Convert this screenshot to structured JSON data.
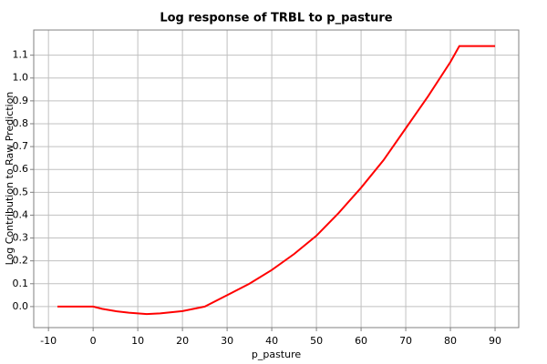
{
  "chart_data": {
    "type": "line",
    "title": "Log response of TRBL to p_pasture",
    "x_label": "p_pasture",
    "y_label": "Log Contribution to Raw Prediction",
    "x": [
      -8,
      0,
      2,
      5,
      8,
      12,
      15,
      20,
      25,
      30,
      35,
      40,
      45,
      50,
      55,
      60,
      65,
      70,
      75,
      80,
      82,
      90
    ],
    "series": [
      {
        "name": "p_pasture",
        "color": "#ff0000",
        "values": [
          0,
          0,
          -0.01,
          -0.02,
          -0.027,
          -0.033,
          -0.03,
          -0.02,
          0.0,
          0.05,
          0.1,
          0.16,
          0.23,
          0.31,
          0.41,
          0.52,
          0.64,
          0.78,
          0.92,
          1.07,
          1.14,
          1.14
        ]
      }
    ],
    "xlim": [
      -13.3,
      95.3
    ],
    "ylim": [
      -0.092,
      1.21
    ],
    "xticks": [
      -10,
      0,
      10,
      20,
      30,
      40,
      50,
      60,
      70,
      80,
      90
    ],
    "yticks": [
      {
        "value": 0,
        "label": "0.0"
      },
      0.1,
      0.2,
      0.3,
      0.4,
      0.5,
      0.6,
      0.7,
      0.8,
      0.9,
      {
        "value": 1,
        "label": "1.0"
      },
      1.1
    ],
    "grid": true
  }
}
